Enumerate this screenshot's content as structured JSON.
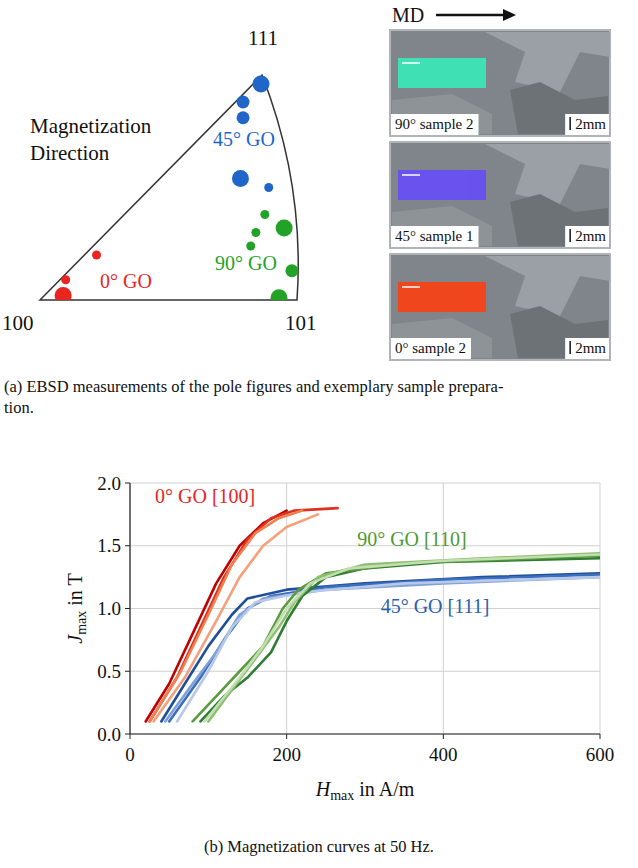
{
  "pole_figure": {
    "type": "scatter",
    "title": "Magnetization Direction",
    "vertex_labels": [
      "100",
      "101",
      "111"
    ],
    "xlim": [
      0,
      1
    ],
    "ylim": [
      0,
      1
    ],
    "tick_labels": false,
    "series": [
      {
        "name": "0° GO",
        "color": "#e8251f",
        "x": [
          0.09,
          0.1,
          0.22
        ],
        "values": [
          0.02,
          0.09,
          0.2
        ],
        "size": [
          3,
          1,
          1
        ]
      },
      {
        "name": "45° GO",
        "color": "#1f66c8",
        "x": [
          0.86,
          0.79,
          0.79,
          0.78,
          0.89
        ],
        "values": [
          0.96,
          0.88,
          0.81,
          0.54,
          0.5
        ],
        "size": [
          3,
          2,
          2,
          3,
          1
        ]
      },
      {
        "name": "90° GO",
        "color": "#22a327",
        "x": [
          0.875,
          0.95,
          0.84,
          0.82,
          0.98,
          0.93
        ],
        "values": [
          0.38,
          0.32,
          0.3,
          0.24,
          0.13,
          0.01
        ],
        "size": [
          1,
          3,
          1,
          1,
          2,
          3
        ]
      }
    ]
  },
  "samples": {
    "direction_label": "MD",
    "scale_label": "2mm",
    "images": [
      {
        "label": "90° sample 2",
        "color": "#3fe0b4"
      },
      {
        "label": "45° sample 1",
        "color": "#6a52ee"
      },
      {
        "label": "0° sample 2",
        "color": "#f0461e"
      }
    ]
  },
  "caption_a": [
    "(a) EBSD measurements of the pole figures and exemplary sample prepara-",
    "tion."
  ],
  "chart_data": {
    "type": "line",
    "x_label": {
      "symbol": "H",
      "subscript": "max",
      "unit": " in A/m"
    },
    "y_label": {
      "symbol": "J",
      "subscript": "max",
      "unit": " in T"
    },
    "xlim": [
      0,
      600
    ],
    "ylim": [
      0,
      2
    ],
    "xticks": [
      0,
      200,
      400,
      600
    ],
    "yticks": [
      {
        "value": 0,
        "label": "0.0"
      },
      {
        "value": 0.5,
        "label": "0.5"
      },
      {
        "value": 1,
        "label": "1.0"
      },
      {
        "value": 1.5,
        "label": "1.5"
      },
      {
        "value": 2,
        "label": "2.0"
      }
    ],
    "grid": true,
    "series": [
      {
        "color": "#c00000",
        "x": [
          20,
          50,
          80,
          110,
          140,
          170,
          200
        ],
        "values": [
          0.1,
          0.4,
          0.8,
          1.2,
          1.5,
          1.68,
          1.78
        ]
      },
      {
        "color": "#e03020",
        "x": [
          25,
          60,
          90,
          120,
          150,
          180,
          210,
          265
        ],
        "values": [
          0.1,
          0.45,
          0.85,
          1.25,
          1.55,
          1.72,
          1.78,
          1.8
        ]
      },
      {
        "color": "#f4a07a",
        "x": [
          30,
          70,
          110,
          140,
          170,
          200,
          240
        ],
        "values": [
          0.1,
          0.45,
          0.9,
          1.25,
          1.5,
          1.65,
          1.75
        ]
      },
      {
        "color": "#f08050",
        "x": [
          25,
          65,
          100,
          130,
          160,
          190,
          220
        ],
        "values": [
          0.1,
          0.5,
          0.95,
          1.35,
          1.6,
          1.72,
          1.78
        ]
      },
      {
        "color": "#1f4e9a",
        "x": [
          40,
          70,
          100,
          130,
          150,
          200,
          300,
          450,
          600
        ],
        "values": [
          0.1,
          0.4,
          0.7,
          0.95,
          1.08,
          1.15,
          1.2,
          1.25,
          1.28
        ]
      },
      {
        "color": "#3a6fc0",
        "x": [
          50,
          90,
          120,
          150,
          180,
          250,
          400,
          600
        ],
        "values": [
          0.1,
          0.45,
          0.75,
          1.0,
          1.1,
          1.17,
          1.23,
          1.27
        ]
      },
      {
        "color": "#7fa0d8",
        "x": [
          45,
          80,
          110,
          140,
          170,
          250,
          400,
          600
        ],
        "values": [
          0.1,
          0.4,
          0.65,
          0.95,
          1.08,
          1.15,
          1.2,
          1.25
        ]
      },
      {
        "color": "#b8c8e8",
        "x": [
          60,
          100,
          130,
          160,
          220,
          350,
          600
        ],
        "values": [
          0.1,
          0.5,
          0.85,
          1.05,
          1.13,
          1.2,
          1.25
        ]
      },
      {
        "color": "#2e7d32",
        "x": [
          90,
          120,
          150,
          180,
          200,
          220,
          250,
          300,
          400,
          600
        ],
        "values": [
          0.1,
          0.3,
          0.45,
          0.65,
          0.9,
          1.1,
          1.25,
          1.32,
          1.37,
          1.4
        ]
      },
      {
        "color": "#5a9a40",
        "x": [
          80,
          110,
          140,
          170,
          195,
          215,
          250,
          350,
          600
        ],
        "values": [
          0.1,
          0.3,
          0.5,
          0.7,
          1.0,
          1.15,
          1.28,
          1.36,
          1.42
        ]
      },
      {
        "color": "#8cbf70",
        "x": [
          100,
          130,
          160,
          190,
          210,
          240,
          300,
          450,
          600
        ],
        "values": [
          0.1,
          0.35,
          0.6,
          0.85,
          1.05,
          1.25,
          1.35,
          1.4,
          1.44
        ]
      },
      {
        "color": "#c3deb0",
        "x": [
          95,
          140,
          170,
          200,
          230,
          280,
          400,
          600
        ],
        "values": [
          0.1,
          0.45,
          0.7,
          1.0,
          1.2,
          1.32,
          1.38,
          1.43
        ]
      }
    ],
    "annotations": [
      {
        "text": "0° GO  [100]",
        "color": "#e8251f",
        "x": 32,
        "y": 1.9
      },
      {
        "text": "90° GO  [110]",
        "color": "#4f9a34",
        "x": 290,
        "y": 1.55
      },
      {
        "text": "45° GO  [111]",
        "color": "#2a60b0",
        "x": 320,
        "y": 1.02
      }
    ]
  },
  "caption_b": "(b) Magnetization curves at 50 Hz."
}
